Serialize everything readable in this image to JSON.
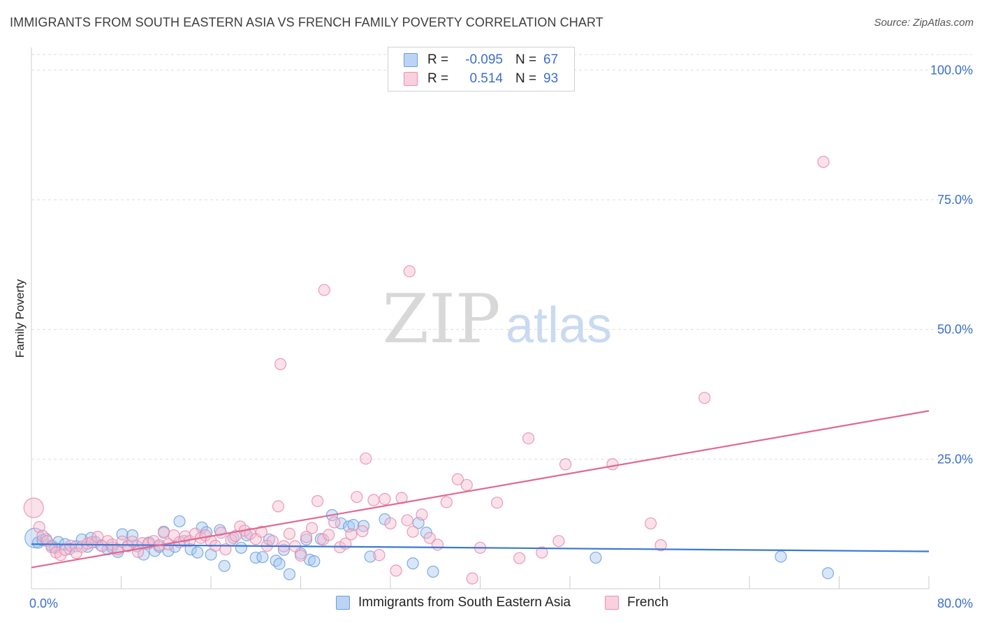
{
  "title": "IMMIGRANTS FROM SOUTH EASTERN ASIA VS FRENCH FAMILY POVERTY CORRELATION CHART",
  "source": "Source: ZipAtlas.com",
  "watermark": {
    "zip": "ZIP",
    "atlas": "atlas"
  },
  "colors": {
    "blue": "#3a78d4",
    "blue_fill": "#a9c8f0",
    "blue_text": "#3a6fcb",
    "pink": "#e06892",
    "pink_fill": "#f6bcd0",
    "grid": "#dddddd",
    "axis": "#cccccc"
  },
  "legend": {
    "rows": [
      {
        "r_label": "R =",
        "r_value": "-0.095",
        "n_label": "N =",
        "n_value": "67",
        "color": "blue"
      },
      {
        "r_label": "R =",
        "r_value": "0.514",
        "n_label": "N =",
        "n_value": "93",
        "color": "pink"
      }
    ]
  },
  "bottom_legend": [
    {
      "label": "Immigrants from South Eastern Asia",
      "color": "blue"
    },
    {
      "label": "French",
      "color": "pink"
    }
  ],
  "chart_data": {
    "type": "scatter",
    "title": "IMMIGRANTS FROM SOUTH EASTERN ASIA VS FRENCH FAMILY POVERTY CORRELATION CHART",
    "xlabel": "",
    "ylabel": "Family Poverty",
    "xlim": [
      0,
      80
    ],
    "ylim": [
      0,
      103
    ],
    "x_tick_labels": [
      "0.0%",
      "80.0%"
    ],
    "y_ticks": [
      25,
      50,
      75,
      100
    ],
    "y_tick_labels": [
      "25.0%",
      "50.0%",
      "75.0%",
      "100.0%"
    ],
    "grid": true,
    "legend_position": "top-center",
    "series": [
      {
        "name": "Immigrants from South Eastern Asia",
        "color": "blue",
        "trend": [
          [
            0,
            8.6
          ],
          [
            80,
            7.2
          ]
        ],
        "points": [
          [
            0.3,
            9.8
          ],
          [
            0.6,
            8.9
          ],
          [
            1.0,
            9.4
          ],
          [
            1.3,
            9.6
          ],
          [
            1.8,
            8.3
          ],
          [
            2.1,
            7.9
          ],
          [
            2.4,
            9.0
          ],
          [
            3.0,
            8.6
          ],
          [
            3.4,
            7.7
          ],
          [
            4.0,
            8.2
          ],
          [
            4.5,
            9.5
          ],
          [
            5.0,
            8.1
          ],
          [
            5.3,
            9.8
          ],
          [
            5.7,
            9.0
          ],
          [
            6.2,
            8.4
          ],
          [
            6.8,
            7.6
          ],
          [
            7.2,
            8.0
          ],
          [
            7.7,
            7.1
          ],
          [
            8.1,
            10.5
          ],
          [
            8.6,
            8.3
          ],
          [
            9.0,
            10.3
          ],
          [
            9.4,
            8.2
          ],
          [
            10.0,
            6.6
          ],
          [
            10.5,
            8.9
          ],
          [
            11.0,
            7.3
          ],
          [
            11.4,
            8.1
          ],
          [
            11.8,
            11.0
          ],
          [
            12.2,
            7.3
          ],
          [
            12.8,
            8.1
          ],
          [
            13.2,
            13.0
          ],
          [
            13.6,
            9.2
          ],
          [
            14.2,
            7.6
          ],
          [
            14.8,
            7.0
          ],
          [
            15.2,
            11.8
          ],
          [
            15.6,
            10.9
          ],
          [
            16.0,
            6.6
          ],
          [
            16.8,
            11.3
          ],
          [
            17.2,
            4.4
          ],
          [
            18.0,
            9.8
          ],
          [
            18.7,
            7.9
          ],
          [
            19.2,
            10.3
          ],
          [
            20.0,
            6.0
          ],
          [
            20.6,
            6.1
          ],
          [
            21.2,
            9.5
          ],
          [
            21.8,
            5.4
          ],
          [
            22.1,
            4.8
          ],
          [
            22.5,
            7.5
          ],
          [
            23.0,
            2.8
          ],
          [
            24.0,
            6.8
          ],
          [
            24.5,
            9.5
          ],
          [
            24.8,
            5.6
          ],
          [
            25.2,
            5.3
          ],
          [
            25.8,
            9.6
          ],
          [
            26.8,
            14.2
          ],
          [
            27.6,
            12.6
          ],
          [
            28.3,
            12.0
          ],
          [
            28.7,
            12.3
          ],
          [
            29.6,
            12.1
          ],
          [
            30.2,
            6.2
          ],
          [
            31.5,
            13.4
          ],
          [
            34.0,
            4.9
          ],
          [
            34.5,
            12.7
          ],
          [
            35.2,
            10.8
          ],
          [
            35.8,
            3.3
          ],
          [
            50.3,
            6.0
          ],
          [
            66.8,
            6.2
          ],
          [
            71.0,
            3.0
          ]
        ]
      },
      {
        "name": "French",
        "color": "pink",
        "trend": [
          [
            0,
            4.1
          ],
          [
            80,
            34.3
          ]
        ],
        "points": [
          [
            0.2,
            15.6
          ],
          [
            0.7,
            11.9
          ],
          [
            1.0,
            10.2
          ],
          [
            1.4,
            9.2
          ],
          [
            1.8,
            8.0
          ],
          [
            2.2,
            7.0
          ],
          [
            2.6,
            6.5
          ],
          [
            3.0,
            7.5
          ],
          [
            3.5,
            8.3
          ],
          [
            4.0,
            6.9
          ],
          [
            4.5,
            8.1
          ],
          [
            5.0,
            8.7
          ],
          [
            5.4,
            9.0
          ],
          [
            5.9,
            10.0
          ],
          [
            6.3,
            8.2
          ],
          [
            6.8,
            9.2
          ],
          [
            7.2,
            8.5
          ],
          [
            7.7,
            7.6
          ],
          [
            8.1,
            9.1
          ],
          [
            8.6,
            8.2
          ],
          [
            9.0,
            9.1
          ],
          [
            9.5,
            7.1
          ],
          [
            9.9,
            8.8
          ],
          [
            10.4,
            8.7
          ],
          [
            10.9,
            9.2
          ],
          [
            11.4,
            8.4
          ],
          [
            11.8,
            10.8
          ],
          [
            12.2,
            8.6
          ],
          [
            12.7,
            10.3
          ],
          [
            13.2,
            9.0
          ],
          [
            13.7,
            10.1
          ],
          [
            14.1,
            9.2
          ],
          [
            14.6,
            10.6
          ],
          [
            15.1,
            9.8
          ],
          [
            15.5,
            10.3
          ],
          [
            16.0,
            9.2
          ],
          [
            16.4,
            8.3
          ],
          [
            16.9,
            10.8
          ],
          [
            17.3,
            7.6
          ],
          [
            17.8,
            9.4
          ],
          [
            18.2,
            10.2
          ],
          [
            18.6,
            12.0
          ],
          [
            19.0,
            11.2
          ],
          [
            19.5,
            10.6
          ],
          [
            20.0,
            9.6
          ],
          [
            20.5,
            11.0
          ],
          [
            21.0,
            8.3
          ],
          [
            21.5,
            9.2
          ],
          [
            22.0,
            15.9
          ],
          [
            22.5,
            8.2
          ],
          [
            23.0,
            10.6
          ],
          [
            23.5,
            8.2
          ],
          [
            24.0,
            6.4
          ],
          [
            24.5,
            10.0
          ],
          [
            25.0,
            11.7
          ],
          [
            25.5,
            16.9
          ],
          [
            26.0,
            9.5
          ],
          [
            26.5,
            10.4
          ],
          [
            27.0,
            12.8
          ],
          [
            27.5,
            8.0
          ],
          [
            28.0,
            8.7
          ],
          [
            28.5,
            10.5
          ],
          [
            29.0,
            17.7
          ],
          [
            29.5,
            11.1
          ],
          [
            30.5,
            17.1
          ],
          [
            31.0,
            6.5
          ],
          [
            31.5,
            17.3
          ],
          [
            32.0,
            12.6
          ],
          [
            32.5,
            3.5
          ],
          [
            33.0,
            17.5
          ],
          [
            33.5,
            13.2
          ],
          [
            34.0,
            11.0
          ],
          [
            34.8,
            14.3
          ],
          [
            35.5,
            9.8
          ],
          [
            36.2,
            8.5
          ],
          [
            37.0,
            16.7
          ],
          [
            38.0,
            21.1
          ],
          [
            38.8,
            20.0
          ],
          [
            39.3,
            2.0
          ],
          [
            40.0,
            7.9
          ],
          [
            41.5,
            16.6
          ],
          [
            43.5,
            5.9
          ],
          [
            45.5,
            7.0
          ],
          [
            47.0,
            9.2
          ],
          [
            47.6,
            24.0
          ],
          [
            51.8,
            24.0
          ],
          [
            55.2,
            12.6
          ],
          [
            56.1,
            8.4
          ],
          [
            60.0,
            36.8
          ],
          [
            29.8,
            25.1
          ],
          [
            22.2,
            43.3
          ],
          [
            26.1,
            57.6
          ],
          [
            33.7,
            61.2
          ]
        ]
      }
    ],
    "outlier_points_pink": [
      [
        70.6,
        82.3
      ],
      [
        44.3,
        29.0
      ]
    ]
  }
}
